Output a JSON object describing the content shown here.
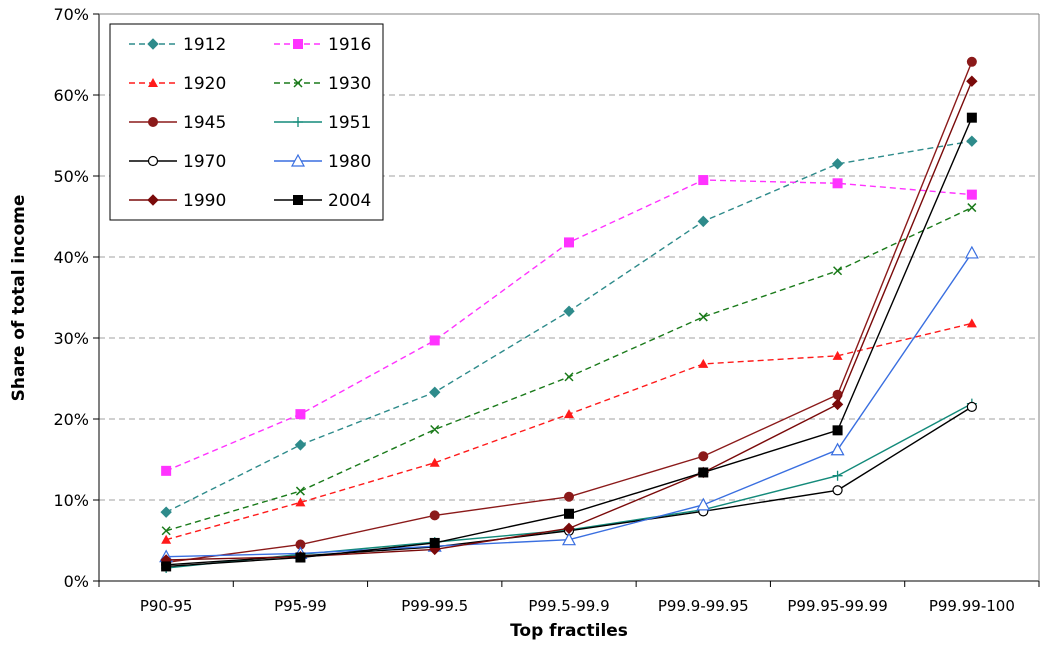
{
  "chart_data": {
    "type": "line",
    "xlabel": "Top fractiles",
    "ylabel": "Share of total income",
    "ylim": [
      0,
      70
    ],
    "y_tick_labels": [
      "0%",
      "10%",
      "20%",
      "30%",
      "40%",
      "50%",
      "60%",
      "70%"
    ],
    "y_gridlines": "dashed",
    "legend_position": "top-left",
    "categories": [
      "P90-95",
      "P95-99",
      "P99-99.5",
      "P99.5-99.9",
      "P99.9-99.95",
      "P99.95-99.99",
      "P99.99-100"
    ],
    "series": [
      {
        "name": "1912",
        "color": "#2E8B8B",
        "dash": "dashed",
        "marker": "diamond",
        "values": [
          8.5,
          16.8,
          23.3,
          33.3,
          44.4,
          51.5,
          54.3
        ]
      },
      {
        "name": "1916",
        "color": "#FF33FF",
        "dash": "dashed",
        "marker": "square",
        "values": [
          13.6,
          20.6,
          29.7,
          41.8,
          49.5,
          49.1,
          47.7
        ]
      },
      {
        "name": "1920",
        "color": "#FF1A1A",
        "dash": "dashed",
        "marker": "triangle",
        "values": [
          5.1,
          9.7,
          14.6,
          20.6,
          26.8,
          27.8,
          31.8
        ]
      },
      {
        "name": "1930",
        "color": "#1A7A1A",
        "dash": "dashed",
        "marker": "x",
        "values": [
          6.2,
          11.1,
          18.7,
          25.2,
          32.6,
          38.3,
          46.1
        ]
      },
      {
        "name": "1945",
        "color": "#8B1A1A",
        "dash": "solid",
        "marker": "circle",
        "values": [
          2.3,
          4.5,
          8.1,
          10.4,
          15.4,
          23.0,
          64.1
        ]
      },
      {
        "name": "1951",
        "color": "#138A7A",
        "dash": "solid",
        "marker": "plus",
        "values": [
          1.6,
          3.3,
          4.8,
          6.3,
          8.8,
          13.0,
          21.9
        ]
      },
      {
        "name": "1970",
        "color": "#000000",
        "dash": "solid",
        "marker": "circle-open",
        "values": [
          2.0,
          3.1,
          4.2,
          6.2,
          8.6,
          11.2,
          21.5
        ]
      },
      {
        "name": "1980",
        "color": "#3A6FE0",
        "dash": "solid",
        "marker": "triangle-open",
        "values": [
          3.0,
          3.4,
          4.3,
          5.1,
          9.4,
          16.2,
          40.5
        ]
      },
      {
        "name": "1990",
        "color": "#7A0A0A",
        "dash": "solid",
        "marker": "diamond",
        "values": [
          2.6,
          3.0,
          3.9,
          6.5,
          13.4,
          21.8,
          61.7
        ]
      },
      {
        "name": "2004",
        "color": "#000000",
        "dash": "solid",
        "marker": "square",
        "values": [
          1.8,
          2.9,
          4.7,
          8.3,
          13.4,
          18.6,
          57.2
        ]
      }
    ]
  }
}
